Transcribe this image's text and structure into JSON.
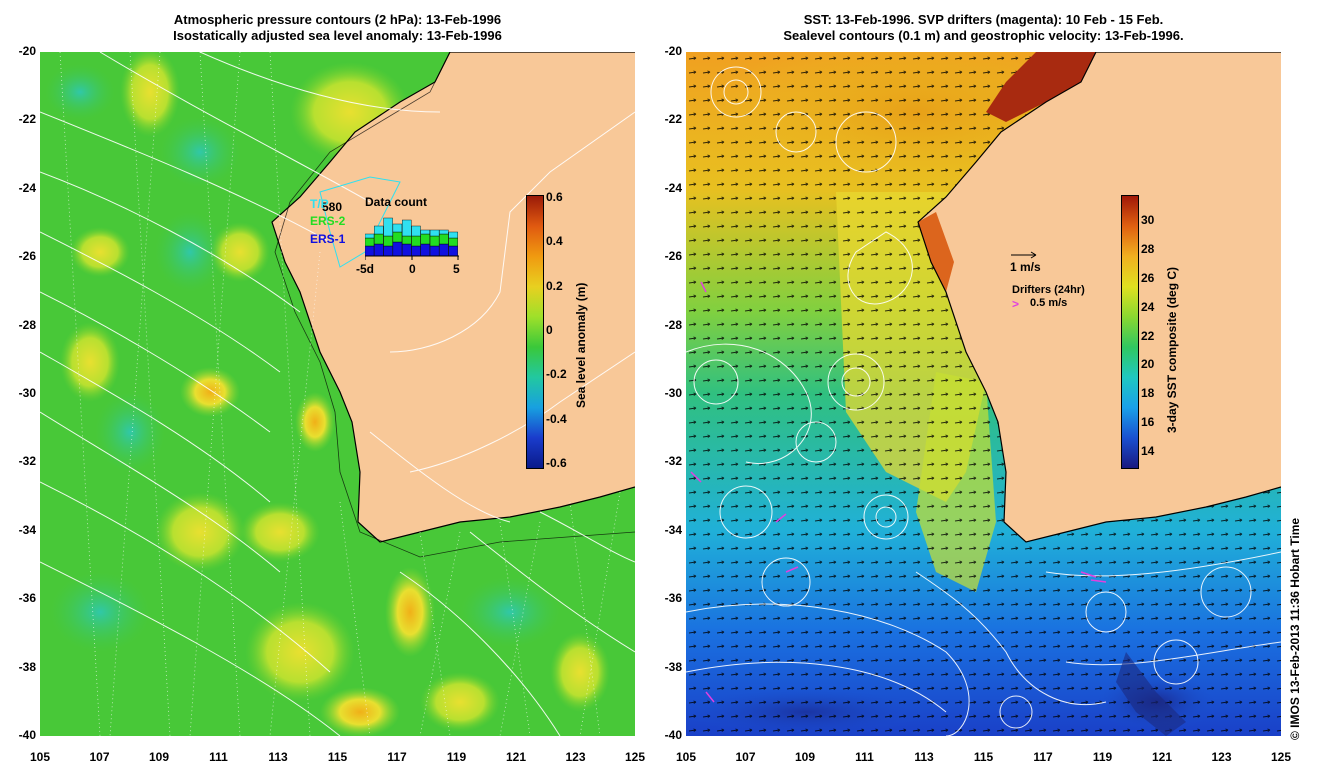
{
  "left_panel": {
    "title_line1": "Atmospheric pressure contours (2 hPa): 13-Feb-1996",
    "title_line2": "Isostatically adjusted sea level anomaly: 13-Feb-1996",
    "colorbar": {
      "label": "Sea level anomaly (m)",
      "ticks": [
        "0.6",
        "0.4",
        "0.2",
        "0",
        "-0.2",
        "-0.4",
        "-0.6"
      ],
      "colors": [
        "#0a1a8a",
        "#1a3ccc",
        "#18a0e0",
        "#22c8a0",
        "#3ac83a",
        "#9ee02a",
        "#e8d020",
        "#f09a10",
        "#e05a10",
        "#9a1a08"
      ]
    },
    "data_count": {
      "title": "Data count",
      "value": "580",
      "series": [
        "T/P",
        "ERS-2",
        "ERS-1"
      ],
      "series_colors": [
        "#30e0f0",
        "#22dd22",
        "#1010e0"
      ],
      "x_ticks": [
        "-5d",
        "0",
        "5"
      ]
    }
  },
  "right_panel": {
    "title_line1": "SST: 13-Feb-1996. SVP drifters (magenta): 10 Feb - 15 Feb.",
    "title_line2": "Sealevel contours (0.1 m) and geostrophic velocity: 13-Feb-1996.",
    "colorbar": {
      "label": "3-day SST composite (deg C)",
      "ticks": [
        "30",
        "28",
        "26",
        "24",
        "22",
        "20",
        "18",
        "16",
        "14"
      ],
      "colors": [
        "#1a1a80",
        "#1a50d0",
        "#1aa0e8",
        "#20c8c0",
        "#30c860",
        "#8ad830",
        "#e0e020",
        "#f0b020",
        "#e06010",
        "#a01808"
      ]
    },
    "velocity_legend": "1 m/s",
    "drifter_legend_title": "Drifters (24hr)",
    "drifter_legend_speed": "0.5 m/s"
  },
  "axes": {
    "lat_ticks": [
      "-20",
      "-22",
      "-24",
      "-26",
      "-28",
      "-30",
      "-32",
      "-34",
      "-36",
      "-38",
      "-40"
    ],
    "lon_ticks": [
      "105",
      "107",
      "109",
      "111",
      "113",
      "115",
      "117",
      "119",
      "121",
      "123",
      "125"
    ]
  },
  "colors": {
    "land": "#f8c898",
    "magenta": "#e040e0"
  },
  "credit": "© IMOS 13-Feb-2013 11:36 Hobart Time"
}
